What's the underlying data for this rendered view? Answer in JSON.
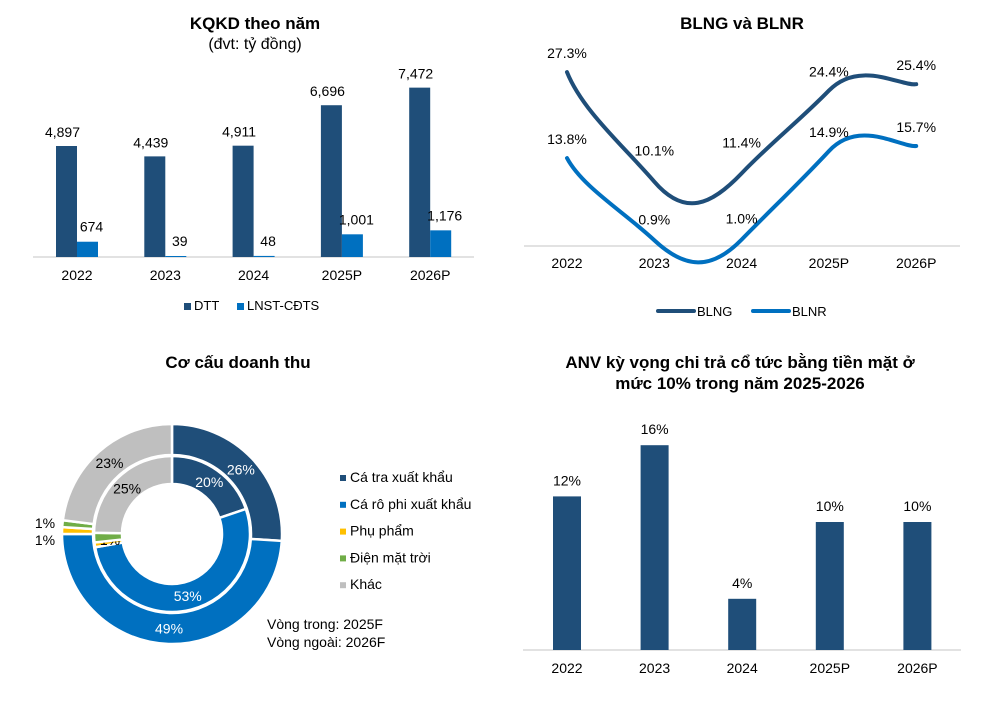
{
  "colors": {
    "dark_blue": "#1F4E79",
    "blue": "#0070C0",
    "yellow": "#FFC000",
    "green": "#70AD47",
    "gray": "#BFBFBF",
    "axis": "#D9D9D9"
  },
  "chart_data": [
    {
      "type": "bar",
      "title": "KQKD theo năm",
      "subtitle": "(đvt: tỷ đồng)",
      "categories": [
        "2022",
        "2023",
        "2024",
        "2025P",
        "2026P"
      ],
      "series": [
        {
          "name": "DTT",
          "values": [
            4897,
            4439,
            4911,
            6696,
            7472
          ],
          "labels": [
            "4,897",
            "4,439",
            "4,911",
            "6,696",
            "7,472"
          ],
          "color": "#1F4E79"
        },
        {
          "name": "LNST-CĐTS",
          "values": [
            674,
            39,
            48,
            1001,
            1176
          ],
          "labels": [
            "674",
            "39",
            "48",
            "1,001",
            "1,176"
          ],
          "color": "#0070C0"
        }
      ],
      "legend": "bottom",
      "grid": false
    },
    {
      "type": "line",
      "title": "BLNG và BLNR",
      "categories": [
        "2022",
        "2023",
        "2024",
        "2025P",
        "2026P"
      ],
      "series": [
        {
          "name": "BLNG",
          "values": [
            27.3,
            10.1,
            11.4,
            24.4,
            25.4
          ],
          "labels": [
            "27.3%",
            "10.1%",
            "11.4%",
            "24.4%",
            "25.4%"
          ],
          "color": "#1F4E79"
        },
        {
          "name": "BLNR",
          "values": [
            13.8,
            0.9,
            1.0,
            14.9,
            15.7
          ],
          "labels": [
            "13.8%",
            "0.9%",
            "1.0%",
            "14.9%",
            "15.7%"
          ],
          "color": "#0070C0"
        }
      ],
      "smooth": true,
      "legend": "bottom",
      "grid": false
    },
    {
      "type": "pie",
      "title": "Cơ cấu doanh thu",
      "categories": [
        "Cá tra xuất khẩu",
        "Cá rô phi xuất khẩu",
        "Phụ phẩm",
        "Điện mặt trời",
        "Khác"
      ],
      "category_colors": [
        "#1F4E79",
        "#0070C0",
        "#FFC000",
        "#70AD47",
        "#BFBFBF"
      ],
      "series": [
        {
          "name": "2025F",
          "ring": "inner",
          "values": [
            20,
            53,
            1,
            2,
            25
          ]
        },
        {
          "name": "2026F",
          "ring": "outer",
          "values": [
            26,
            49,
            1,
            1,
            23
          ]
        }
      ],
      "notes": [
        "Vòng trong: 2025F",
        "Vòng ngoài: 2026F"
      ],
      "legend": "right"
    },
    {
      "type": "bar",
      "title": "ANV kỳ vọng chi trả cổ tức bằng tiền mặt ở mức 10% trong năm 2025-2026",
      "title_lines": [
        "ANV kỳ vọng chi trả cổ tức bằng tiền mặt ở",
        "mức 10% trong năm 2025-2026"
      ],
      "categories": [
        "2022",
        "2023",
        "2024",
        "2025P",
        "2026P"
      ],
      "values": [
        12,
        16,
        4,
        10,
        10
      ],
      "labels": [
        "12%",
        "16%",
        "4%",
        "10%",
        "10%"
      ],
      "color": "#1F4E79",
      "grid": false
    }
  ]
}
